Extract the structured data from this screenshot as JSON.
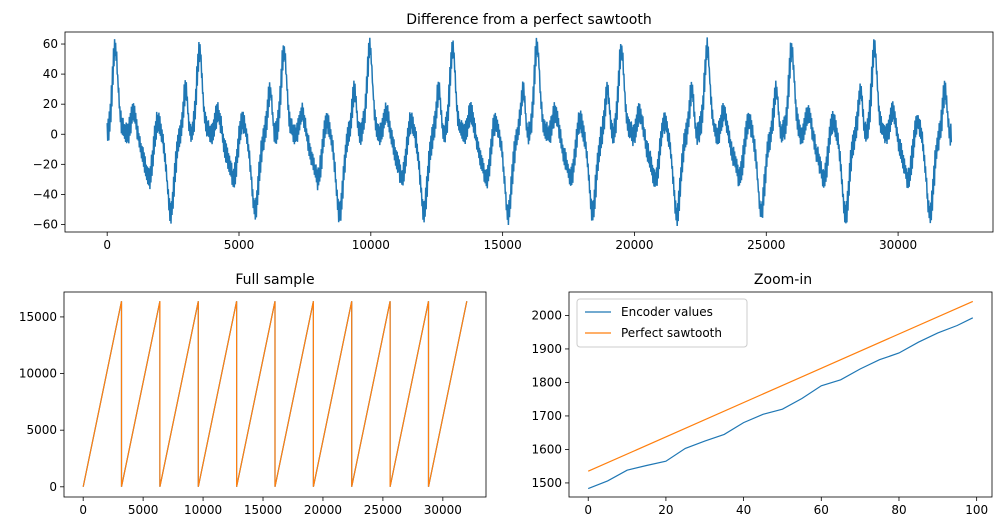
{
  "chart_data": [
    {
      "id": "diff",
      "type": "line",
      "title": "Difference from a perfect sawtooth",
      "xlim": [
        -1600,
        33600
      ],
      "ylim": [
        -65,
        68
      ],
      "xticks": [
        0,
        5000,
        10000,
        15000,
        20000,
        25000,
        30000
      ],
      "yticks": [
        -60,
        -40,
        -20,
        0,
        20,
        40,
        60
      ],
      "series": [
        {
          "color": "#1f77b4",
          "n_points": 32000,
          "periods": [
            {
              "x0": 0,
              "x1": 3200,
              "x_peak": 300,
              "peak": 60,
              "trough": -55
            },
            {
              "x0": 3200,
              "x1": 6400,
              "x_peak": 3500,
              "peak": 59,
              "trough": -54
            },
            {
              "x0": 6400,
              "x1": 9600,
              "x_peak": 6700,
              "peak": 58,
              "trough": -56
            },
            {
              "x0": 9600,
              "x1": 12800,
              "x_peak": 9950,
              "peak": 60,
              "trough": -55
            },
            {
              "x0": 12800,
              "x1": 16000,
              "x_peak": 13100,
              "peak": 59,
              "trough": -56
            },
            {
              "x0": 16000,
              "x1": 19200,
              "x_peak": 16300,
              "peak": 61,
              "trough": -55
            },
            {
              "x0": 19200,
              "x1": 22400,
              "x_peak": 19500,
              "peak": 59,
              "trough": -57
            },
            {
              "x0": 22400,
              "x1": 25600,
              "x_peak": 22750,
              "peak": 60,
              "trough": -54
            },
            {
              "x0": 25600,
              "x1": 28800,
              "x_peak": 25950,
              "peak": 59,
              "trough": -57
            },
            {
              "x0": 28800,
              "x1": 32000,
              "x_peak": 29100,
              "peak": 60,
              "trough": -57
            }
          ]
        }
      ]
    },
    {
      "id": "full",
      "type": "line",
      "title": "Full sample",
      "xlim": [
        -1600,
        33600
      ],
      "ylim": [
        -900,
        17200
      ],
      "xticks": [
        0,
        5000,
        10000,
        15000,
        20000,
        25000,
        30000
      ],
      "yticks": [
        0,
        5000,
        10000,
        15000
      ],
      "sawtooth": {
        "period": 3200,
        "max": 16383,
        "x_end": 32000
      },
      "series": [
        {
          "color": "#1f77b4"
        },
        {
          "color": "#ff7f0e"
        }
      ]
    },
    {
      "id": "zoom",
      "type": "line",
      "title": "Zoom-in",
      "xlim": [
        -4.95,
        103.95
      ],
      "ylim": [
        1458,
        2070
      ],
      "xticks": [
        0,
        20,
        40,
        60,
        80,
        100
      ],
      "yticks": [
        1500,
        1600,
        1700,
        1800,
        1900,
        2000
      ],
      "legend": "upper left",
      "series": [
        {
          "name": "Encoder values",
          "color": "#1f77b4",
          "x": [
            0,
            5,
            10,
            15,
            20,
            25,
            30,
            35,
            40,
            45,
            50,
            55,
            60,
            65,
            70,
            75,
            80,
            85,
            90,
            95,
            99
          ],
          "y": [
            1483,
            1506,
            1538,
            1552,
            1565,
            1603,
            1625,
            1645,
            1680,
            1705,
            1720,
            1752,
            1790,
            1808,
            1840,
            1868,
            1888,
            1920,
            1948,
            1970,
            1993
          ]
        },
        {
          "name": "Perfect sawtooth",
          "color": "#ff7f0e",
          "x": [
            0,
            99
          ],
          "y": [
            1535,
            2042
          ]
        }
      ]
    }
  ]
}
